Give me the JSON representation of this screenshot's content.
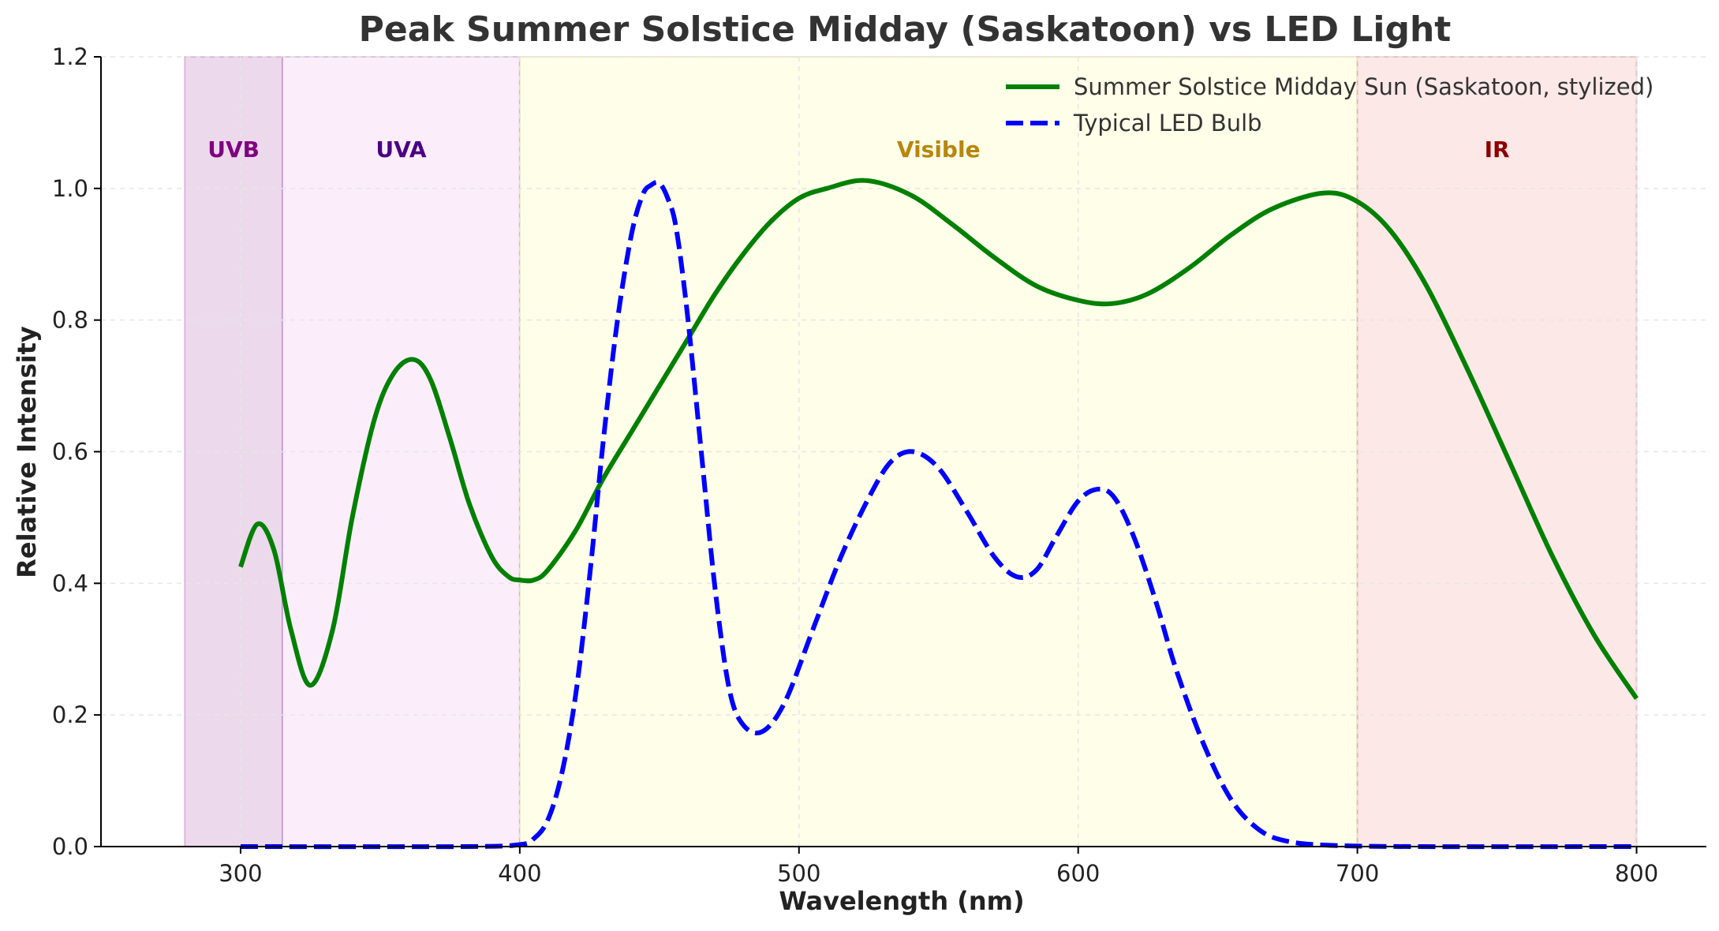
{
  "chart_data": {
    "type": "line",
    "title": "Peak Summer Solstice Midday (Saskatoon) vs LED Light",
    "xlabel": "Wavelength (nm)",
    "ylabel": "Relative Intensity",
    "xlim": [
      250,
      825
    ],
    "ylim": [
      0,
      1.2
    ],
    "xticks": [
      300,
      400,
      500,
      600,
      700,
      800
    ],
    "xtick_labels": [
      "300",
      "400",
      "500",
      "600",
      "700",
      "800"
    ],
    "yticks": [
      0,
      0.2,
      0.4,
      0.6,
      0.8,
      1.0,
      1.2
    ],
    "ytick_labels": [
      "0.0",
      "0.2",
      "0.4",
      "0.6",
      "0.8",
      "1.0",
      "1.2"
    ],
    "grid": true,
    "legend_position": "top-right",
    "regions": [
      {
        "label": "UVB",
        "x_start": 280,
        "x_end": 315,
        "color": "#800080",
        "fill": "#ecd9ec",
        "label_y": 1.06
      },
      {
        "label": "UVA",
        "x_start": 315,
        "x_end": 400,
        "color": "#4b0082",
        "fill": "#fbeefa",
        "label_y": 1.06
      },
      {
        "label": "Visible",
        "x_start": 400,
        "x_end": 700,
        "color": "#b8860b",
        "fill": "#fefee9",
        "label_y": 1.06
      },
      {
        "label": "IR",
        "x_start": 700,
        "x_end": 800,
        "color": "#8b0000",
        "fill": "#fde8e8",
        "label_y": 1.06
      }
    ],
    "series": [
      {
        "name": "Summer Solstice Midday Sun (Saskatoon, stylized)",
        "color": "#008000",
        "style": "solid",
        "x": [
          300,
          306,
          312,
          318,
          325,
          333,
          340,
          348,
          355,
          362,
          368,
          375,
          382,
          390,
          396,
          400,
          405,
          410,
          420,
          430,
          440,
          450,
          460,
          470,
          480,
          490,
          500,
          510,
          524,
          540,
          555,
          570,
          585,
          600,
          612,
          625,
          640,
          655,
          670,
          688,
          700,
          712,
          725,
          740,
          755,
          770,
          785,
          800
        ],
        "y": [
          0.425,
          0.49,
          0.45,
          0.33,
          0.245,
          0.33,
          0.5,
          0.65,
          0.72,
          0.74,
          0.71,
          0.62,
          0.52,
          0.44,
          0.41,
          0.405,
          0.405,
          0.42,
          0.48,
          0.56,
          0.63,
          0.7,
          0.77,
          0.84,
          0.9,
          0.95,
          0.985,
          1.0,
          1.012,
          0.99,
          0.945,
          0.895,
          0.852,
          0.83,
          0.825,
          0.84,
          0.88,
          0.93,
          0.97,
          0.993,
          0.98,
          0.935,
          0.85,
          0.72,
          0.58,
          0.44,
          0.32,
          0.225
        ]
      },
      {
        "name": "Typical LED Bulb",
        "color": "#0000ff",
        "style": "dashed",
        "x": [
          300,
          380,
          400,
          405,
          410,
          415,
          420,
          425,
          430,
          435,
          440,
          444,
          447,
          450,
          453,
          456,
          460,
          465,
          470,
          475,
          480,
          487,
          495,
          505,
          515,
          525,
          533,
          541,
          550,
          560,
          570,
          578,
          585,
          592,
          600,
          607,
          613,
          620,
          628,
          635,
          645,
          655,
          665,
          675,
          690,
          720,
          800
        ],
        "y": [
          0.0,
          0.0,
          0.003,
          0.012,
          0.04,
          0.11,
          0.23,
          0.41,
          0.62,
          0.8,
          0.93,
          0.99,
          1.005,
          1.008,
          0.985,
          0.94,
          0.81,
          0.6,
          0.39,
          0.24,
          0.185,
          0.175,
          0.22,
          0.33,
          0.44,
          0.53,
          0.585,
          0.6,
          0.575,
          0.51,
          0.44,
          0.41,
          0.42,
          0.47,
          0.525,
          0.543,
          0.53,
          0.47,
          0.37,
          0.27,
          0.155,
          0.07,
          0.025,
          0.008,
          0.002,
          0.0,
          0.0
        ]
      }
    ]
  }
}
